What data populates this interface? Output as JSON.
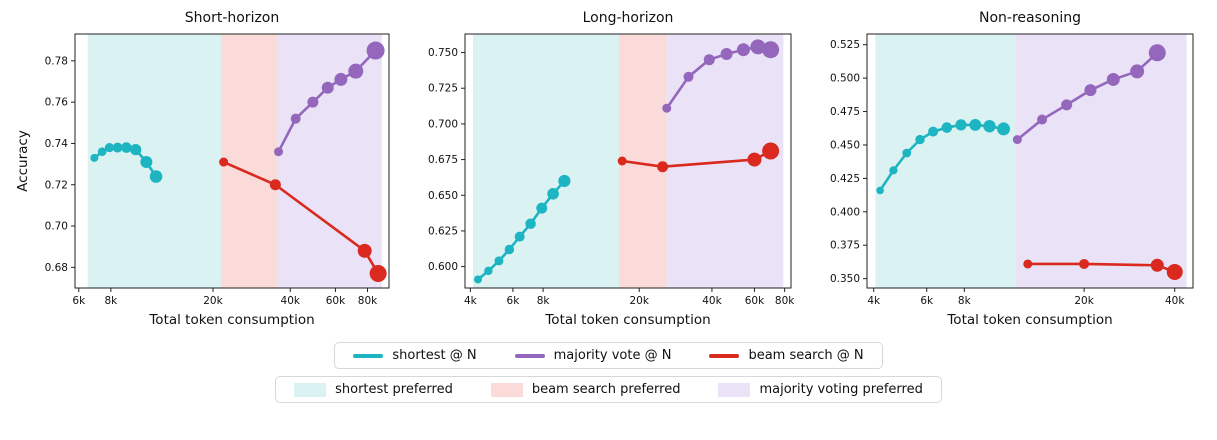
{
  "colors": {
    "shortest": "#1db5c2",
    "majority": "#9467bd",
    "beam": "#da291f",
    "shortest_region": "#dbf2f3",
    "beam_region": "#fadbd9",
    "majority_region": "#eae2f6"
  },
  "legend": {
    "row1": [
      {
        "key": "shortest",
        "label": "shortest @ N"
      },
      {
        "key": "majority",
        "label": "majority vote @ N"
      },
      {
        "key": "beam",
        "label": "beam search @ N"
      }
    ],
    "row2": [
      {
        "key": "shortest_region",
        "label": "shortest preferred"
      },
      {
        "key": "beam_region",
        "label": "beam search preferred"
      },
      {
        "key": "majority_region",
        "label": "majority voting preferred"
      }
    ]
  },
  "chart_data": [
    {
      "id": "short-horizon",
      "type": "line",
      "title": "Short-horizon",
      "xlabel": "Total token consumption",
      "ylabel": "Accuracy",
      "xscale": "log",
      "xlim": [
        5800,
        97000
      ],
      "ylim": [
        0.67,
        0.793
      ],
      "xticks": [
        {
          "v": 6000,
          "label": "6k"
        },
        {
          "v": 8000,
          "label": "8k"
        },
        {
          "v": 20000,
          "label": "20k"
        },
        {
          "v": 40000,
          "label": "40k"
        },
        {
          "v": 60000,
          "label": "60k"
        },
        {
          "v": 80000,
          "label": "80k"
        }
      ],
      "yticks": [
        {
          "v": 0.68,
          "label": "0.68"
        },
        {
          "v": 0.7,
          "label": "0.70"
        },
        {
          "v": 0.72,
          "label": "0.72"
        },
        {
          "v": 0.74,
          "label": "0.74"
        },
        {
          "v": 0.76,
          "label": "0.76"
        },
        {
          "v": 0.78,
          "label": "0.78"
        }
      ],
      "regions": [
        {
          "color": "shortest_region",
          "x0": 6500,
          "x1": 21500
        },
        {
          "color": "beam_region",
          "x0": 21500,
          "x1": 35500
        },
        {
          "color": "majority_region",
          "x0": 35500,
          "x1": 91000
        }
      ],
      "series": [
        {
          "name": "shortest @ N",
          "color": "shortest",
          "x": [
            6900,
            7400,
            7900,
            8500,
            9200,
            10000,
            11000,
            12000
          ],
          "y": [
            0.733,
            0.736,
            0.738,
            0.738,
            0.738,
            0.737,
            0.731,
            0.724
          ],
          "r": [
            4,
            4.3,
            4.6,
            5,
            5.3,
            5.6,
            6,
            6.3
          ]
        },
        {
          "name": "beam search @ N",
          "color": "beam",
          "x": [
            22000,
            35000,
            78000,
            88000
          ],
          "y": [
            0.731,
            0.72,
            0.688,
            0.677
          ],
          "r": [
            4.5,
            5.5,
            7,
            8.5
          ]
        },
        {
          "name": "majority vote @ N",
          "color": "majority",
          "x": [
            36000,
            42000,
            49000,
            56000,
            63000,
            72000,
            86000
          ],
          "y": [
            0.736,
            0.752,
            0.76,
            0.767,
            0.771,
            0.775,
            0.785
          ],
          "r": [
            4.5,
            5,
            5.5,
            6,
            6.5,
            7.5,
            9
          ]
        }
      ]
    },
    {
      "id": "long-horizon",
      "type": "line",
      "title": "Long-horizon",
      "xlabel": "Total token consumption",
      "ylabel": "",
      "xscale": "log",
      "xlim": [
        3800,
        85000
      ],
      "ylim": [
        0.585,
        0.763
      ],
      "xticks": [
        {
          "v": 4000,
          "label": "4k"
        },
        {
          "v": 6000,
          "label": "6k"
        },
        {
          "v": 8000,
          "label": "8k"
        },
        {
          "v": 20000,
          "label": "20k"
        },
        {
          "v": 40000,
          "label": "40k"
        },
        {
          "v": 60000,
          "label": "60k"
        },
        {
          "v": 80000,
          "label": "80k"
        }
      ],
      "yticks": [
        {
          "v": 0.6,
          "label": "0.600"
        },
        {
          "v": 0.625,
          "label": "0.625"
        },
        {
          "v": 0.65,
          "label": "0.650"
        },
        {
          "v": 0.675,
          "label": "0.675"
        },
        {
          "v": 0.7,
          "label": "0.700"
        },
        {
          "v": 0.725,
          "label": "0.725"
        },
        {
          "v": 0.75,
          "label": "0.750"
        }
      ],
      "regions": [
        {
          "color": "shortest_region",
          "x0": 4100,
          "x1": 16500
        },
        {
          "color": "beam_region",
          "x0": 16500,
          "x1": 26000
        },
        {
          "color": "majority_region",
          "x0": 26000,
          "x1": 79000
        }
      ],
      "series": [
        {
          "name": "shortest @ N",
          "color": "shortest",
          "x": [
            4300,
            4750,
            5250,
            5800,
            6400,
            7100,
            7900,
            8800,
            9800
          ],
          "y": [
            0.591,
            0.597,
            0.604,
            0.612,
            0.621,
            0.63,
            0.641,
            0.651,
            0.66
          ],
          "r": [
            4,
            4.25,
            4.5,
            4.75,
            5,
            5.25,
            5.5,
            5.8,
            6.1
          ]
        },
        {
          "name": "beam search @ N",
          "color": "beam",
          "x": [
            17000,
            25000,
            60000,
            70000
          ],
          "y": [
            0.674,
            0.67,
            0.675,
            0.681
          ],
          "r": [
            4.5,
            5.5,
            7,
            8.5
          ]
        },
        {
          "name": "majority vote @ N",
          "color": "majority",
          "x": [
            26000,
            32000,
            39000,
            46000,
            54000,
            62000,
            70000
          ],
          "y": [
            0.711,
            0.733,
            0.745,
            0.749,
            0.752,
            0.754,
            0.752
          ],
          "r": [
            4.5,
            5,
            5.5,
            6,
            6.5,
            7.5,
            8.5
          ]
        }
      ]
    },
    {
      "id": "non-reasoning",
      "type": "line",
      "title": "Non-reasoning",
      "xlabel": "Total token consumption",
      "ylabel": "",
      "xscale": "log",
      "xlim": [
        3800,
        46000
      ],
      "ylim": [
        0.343,
        0.533
      ],
      "xticks": [
        {
          "v": 4000,
          "label": "4k"
        },
        {
          "v": 6000,
          "label": "6k"
        },
        {
          "v": 8000,
          "label": "8k"
        },
        {
          "v": 20000,
          "label": "20k"
        },
        {
          "v": 40000,
          "label": "40k"
        }
      ],
      "yticks": [
        {
          "v": 0.35,
          "label": "0.350"
        },
        {
          "v": 0.375,
          "label": "0.375"
        },
        {
          "v": 0.4,
          "label": "0.400"
        },
        {
          "v": 0.425,
          "label": "0.425"
        },
        {
          "v": 0.45,
          "label": "0.450"
        },
        {
          "v": 0.475,
          "label": "0.475"
        },
        {
          "v": 0.5,
          "label": "0.500"
        },
        {
          "v": 0.525,
          "label": "0.525"
        }
      ],
      "regions": [
        {
          "color": "shortest_region",
          "x0": 4050,
          "x1": 11800
        },
        {
          "color": "majority_region",
          "x0": 11800,
          "x1": 43800
        }
      ],
      "series": [
        {
          "name": "shortest @ N",
          "color": "shortest",
          "x": [
            4200,
            4650,
            5150,
            5700,
            6300,
            7000,
            7800,
            8700,
            9700,
            10800
          ],
          "y": [
            0.416,
            0.431,
            0.444,
            0.454,
            0.46,
            0.463,
            0.465,
            0.465,
            0.464,
            0.462
          ],
          "r": [
            3.8,
            4.1,
            4.4,
            4.7,
            5,
            5.3,
            5.6,
            5.9,
            6.2,
            6.5
          ]
        },
        {
          "name": "beam search @ N",
          "color": "beam",
          "x": [
            13000,
            20000,
            35000,
            40000
          ],
          "y": [
            0.361,
            0.361,
            0.36,
            0.355
          ],
          "r": [
            4.5,
            5,
            6.5,
            8
          ]
        },
        {
          "name": "majority vote @ N",
          "color": "majority",
          "x": [
            12000,
            14500,
            17500,
            21000,
            25000,
            30000,
            35000
          ],
          "y": [
            0.454,
            0.469,
            0.48,
            0.491,
            0.499,
            0.505,
            0.519
          ],
          "r": [
            4.5,
            5,
            5.5,
            6,
            6.5,
            7,
            8.5
          ]
        }
      ]
    }
  ]
}
